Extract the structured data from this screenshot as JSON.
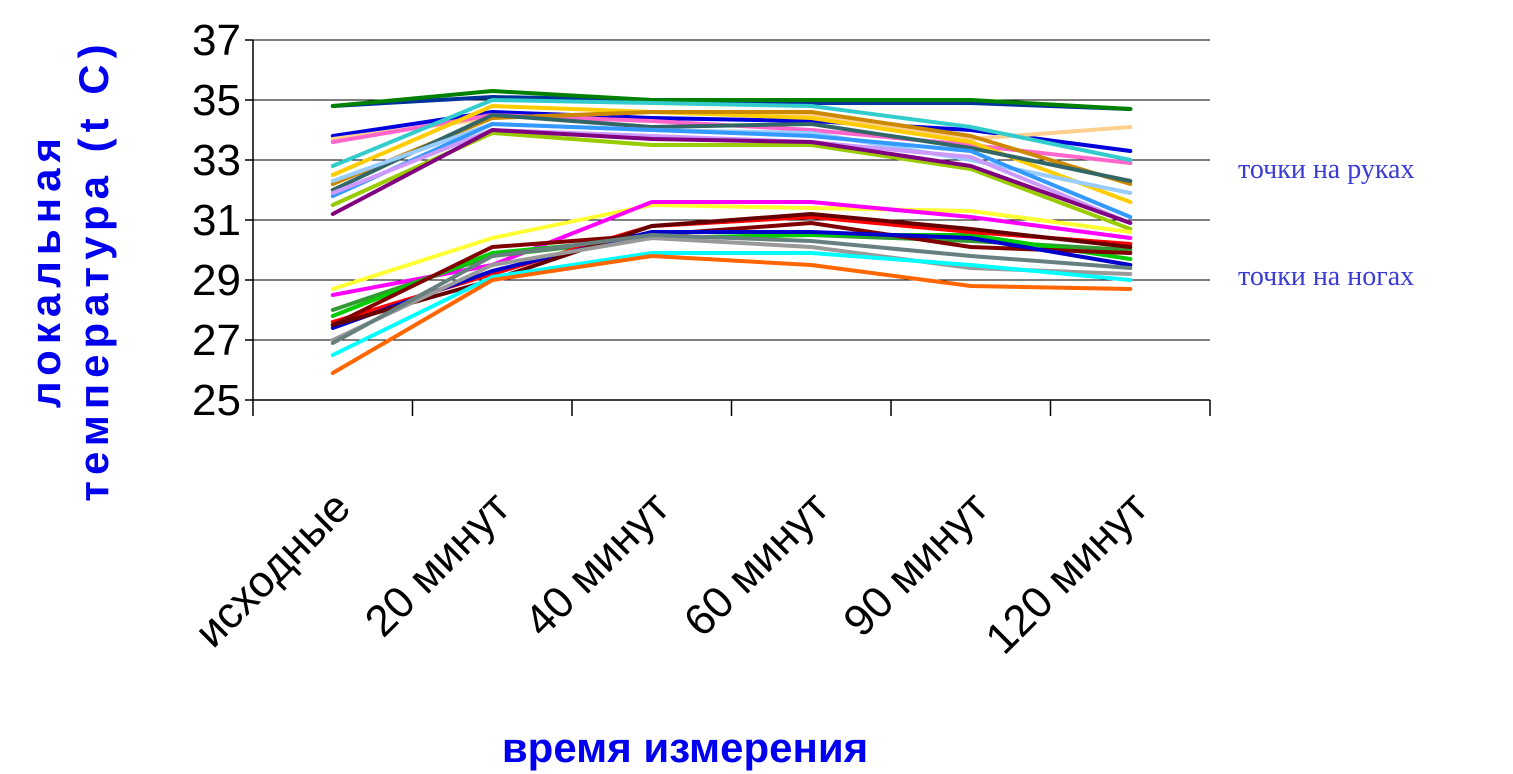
{
  "chart_data": {
    "type": "line",
    "categories": [
      "исходные",
      "20 минут",
      "40 минут",
      "60 минут",
      "90 минут",
      "120 минут"
    ],
    "xlabel": "время измерения",
    "ylabel_lines": [
      "локальная",
      "температура (t C)"
    ],
    "ylim": [
      25,
      37
    ],
    "yticks": [
      "25",
      "27",
      "29",
      "31",
      "33",
      "35",
      "37"
    ],
    "grid": true,
    "annotations": [
      "точки на руках",
      "точки на ногах"
    ],
    "series": [
      {
        "color": "#003399",
        "values": [
          34.8,
          35.1,
          35.0,
          34.9,
          34.9,
          34.7
        ]
      },
      {
        "color": "#008000",
        "values": [
          34.8,
          35.3,
          35.0,
          35.0,
          35.0,
          34.7
        ]
      },
      {
        "color": "#0000dd",
        "values": [
          33.8,
          34.6,
          34.4,
          34.3,
          34.0,
          33.3
        ]
      },
      {
        "color": "#ffd090",
        "values": [
          33.7,
          34.4,
          34.6,
          34.5,
          33.7,
          34.1
        ]
      },
      {
        "color": "#ff66cc",
        "values": [
          33.6,
          34.5,
          34.3,
          34.0,
          33.5,
          32.9
        ]
      },
      {
        "color": "#33cccc",
        "values": [
          32.8,
          35.0,
          34.9,
          34.8,
          34.1,
          33.0
        ]
      },
      {
        "color": "#ffcc00",
        "values": [
          32.5,
          34.8,
          34.6,
          34.4,
          33.6,
          31.6
        ]
      },
      {
        "color": "#cc8800",
        "values": [
          32.2,
          34.4,
          34.6,
          34.6,
          33.8,
          32.2
        ]
      },
      {
        "color": "#336666",
        "values": [
          32.0,
          34.5,
          34.1,
          34.2,
          33.4,
          32.3
        ]
      },
      {
        "color": "#99ccff",
        "values": [
          32.3,
          34.2,
          34.0,
          33.9,
          33.0,
          31.9
        ]
      },
      {
        "color": "#3399ff",
        "values": [
          31.8,
          34.2,
          34.0,
          33.8,
          33.3,
          31.1
        ]
      },
      {
        "color": "#cc99ff",
        "values": [
          31.9,
          34.0,
          33.8,
          33.6,
          33.1,
          30.9
        ]
      },
      {
        "color": "#99cc00",
        "values": [
          31.5,
          33.9,
          33.5,
          33.5,
          32.7,
          30.7
        ]
      },
      {
        "color": "#800080",
        "values": [
          31.2,
          34.0,
          33.7,
          33.6,
          32.8,
          30.9
        ]
      },
      {
        "color": "#ffff33",
        "values": [
          28.7,
          30.4,
          31.5,
          31.4,
          31.3,
          30.6
        ]
      },
      {
        "color": "#ff00ff",
        "values": [
          28.5,
          29.5,
          31.6,
          31.6,
          31.1,
          30.4
        ]
      },
      {
        "color": "#339933",
        "values": [
          28.0,
          29.8,
          30.4,
          30.5,
          30.3,
          30.0
        ]
      },
      {
        "color": "#00cc00",
        "values": [
          27.8,
          29.9,
          30.4,
          30.5,
          30.5,
          29.7
        ]
      },
      {
        "color": "#ff0000",
        "values": [
          27.6,
          29.2,
          30.8,
          31.1,
          30.6,
          30.2
        ]
      },
      {
        "color": "#800000",
        "values": [
          27.5,
          30.1,
          30.5,
          30.9,
          30.1,
          29.9
        ]
      },
      {
        "color": "#0000cc",
        "values": [
          27.4,
          29.3,
          30.6,
          30.6,
          30.4,
          29.5
        ]
      },
      {
        "color": "#660000",
        "values": [
          27.5,
          29.0,
          30.8,
          31.2,
          30.7,
          30.1
        ]
      },
      {
        "color": "#999999",
        "values": [
          27.0,
          29.5,
          30.4,
          30.1,
          29.4,
          29.2
        ]
      },
      {
        "color": "#668080",
        "values": [
          26.9,
          29.8,
          30.5,
          30.3,
          29.8,
          29.4
        ]
      },
      {
        "color": "#00ffff",
        "values": [
          26.5,
          29.1,
          29.9,
          29.9,
          29.5,
          29.0
        ]
      },
      {
        "color": "#ff6600",
        "values": [
          25.9,
          29.0,
          29.8,
          29.5,
          28.8,
          28.7
        ]
      }
    ]
  }
}
